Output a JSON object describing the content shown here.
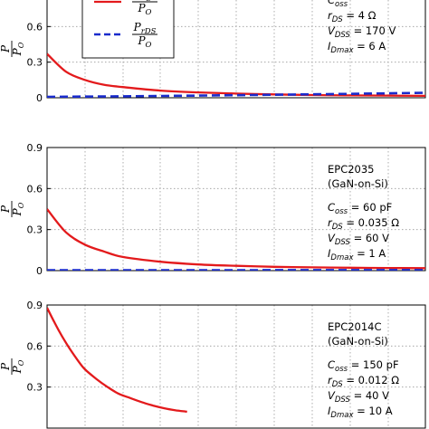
{
  "chart_data": [
    {
      "type": "line",
      "ylabel": {
        "num": "P",
        "den": "P",
        "den_sub": "O"
      },
      "yticks": [
        "0",
        "0.3",
        "0.6"
      ],
      "ylim": [
        0,
        0.9
      ],
      "xlim": [
        0,
        1
      ],
      "grid": true,
      "legend": {
        "placement": "top-left",
        "entries": [
          {
            "num": "P",
            "num_sub": "C",
            "den": "P",
            "den_sub": "O",
            "color": "#e31a1c",
            "dash": false
          },
          {
            "num": "P",
            "num_sub": "rDS",
            "den": "P",
            "den_sub": "O",
            "color": "#1a2ccc",
            "dash": true
          }
        ]
      },
      "annotation": {
        "lines": [
          {
            "sym": "C",
            "sub": "oss",
            "value": ""
          },
          {
            "sym": "r",
            "sub": "DS",
            "value": "= 4 Ω"
          },
          {
            "sym": "V",
            "sub": "DSS",
            "value": "= 170 V"
          },
          {
            "sym": "I",
            "sub": "Dmax",
            "value": "= 6 A"
          }
        ]
      },
      "series": [
        {
          "color": "#e31a1c",
          "dash": false,
          "x": [
            0,
            0.05,
            0.1,
            0.15,
            0.2,
            0.3,
            0.4,
            0.5,
            0.6,
            0.7,
            0.8,
            0.9,
            1.0
          ],
          "y": [
            0.37,
            0.22,
            0.15,
            0.11,
            0.09,
            0.06,
            0.045,
            0.035,
            0.028,
            0.023,
            0.02,
            0.018,
            0.016
          ]
        },
        {
          "color": "#1a2ccc",
          "dash": true,
          "x": [
            0,
            0.2,
            0.4,
            0.6,
            0.8,
            1.0
          ],
          "y": [
            0.008,
            0.012,
            0.018,
            0.025,
            0.033,
            0.042
          ]
        }
      ]
    },
    {
      "type": "line",
      "ylabel": {
        "num": "P",
        "den": "P",
        "den_sub": "O"
      },
      "yticks": [
        "0",
        "0.3",
        "0.6",
        "0.9"
      ],
      "ylim": [
        0,
        0.9
      ],
      "xlim": [
        0,
        1
      ],
      "grid": true,
      "annotation": {
        "title": [
          "EPC2035",
          "(GaN-on-Si)"
        ],
        "lines": [
          {
            "sym": "C",
            "sub": "oss",
            "value": "= 60 pF"
          },
          {
            "sym": "r",
            "sub": "DS",
            "value": "= 0.035 Ω"
          },
          {
            "sym": "V",
            "sub": "DSS",
            "value": "= 60 V"
          },
          {
            "sym": "I",
            "sub": "Dmax",
            "value": "= 1 A"
          }
        ]
      },
      "series": [
        {
          "color": "#e31a1c",
          "dash": false,
          "x": [
            0,
            0.05,
            0.1,
            0.15,
            0.2,
            0.3,
            0.4,
            0.5,
            0.6,
            0.7,
            0.8,
            0.9,
            1.0
          ],
          "y": [
            0.45,
            0.28,
            0.19,
            0.14,
            0.1,
            0.065,
            0.045,
            0.035,
            0.028,
            0.024,
            0.021,
            0.019,
            0.018
          ]
        },
        {
          "color": "#1a2ccc",
          "dash": true,
          "x": [
            0,
            0.5,
            1.0
          ],
          "y": [
            0.003,
            0.003,
            0.004
          ]
        }
      ]
    },
    {
      "type": "line",
      "ylabel": {
        "num": "P",
        "den": "P",
        "den_sub": "O"
      },
      "yticks": [
        "0.3",
        "0.6",
        "0.9"
      ],
      "ylim": [
        0,
        0.9
      ],
      "xlim": [
        0,
        1
      ],
      "grid": true,
      "annotation": {
        "title": [
          "EPC2014C",
          "(GaN-on-Si)"
        ],
        "lines": [
          {
            "sym": "C",
            "sub": "oss",
            "value": "= 150 pF"
          },
          {
            "sym": "r",
            "sub": "DS",
            "value": "= 0.012 Ω"
          },
          {
            "sym": "V",
            "sub": "DSS",
            "value": "= 40 V"
          },
          {
            "sym": "I",
            "sub": "Dmax",
            "value": "= 10 A"
          }
        ]
      },
      "series": [
        {
          "color": "#e31a1c",
          "dash": false,
          "x": [
            0,
            0.02,
            0.04,
            0.06,
            0.08,
            0.1,
            0.13,
            0.16,
            0.19,
            0.22,
            0.25,
            0.28,
            0.31,
            0.34,
            0.37
          ],
          "y": [
            0.88,
            0.77,
            0.67,
            0.58,
            0.5,
            0.43,
            0.36,
            0.3,
            0.25,
            0.22,
            0.19,
            0.165,
            0.145,
            0.13,
            0.12
          ]
        }
      ]
    }
  ]
}
